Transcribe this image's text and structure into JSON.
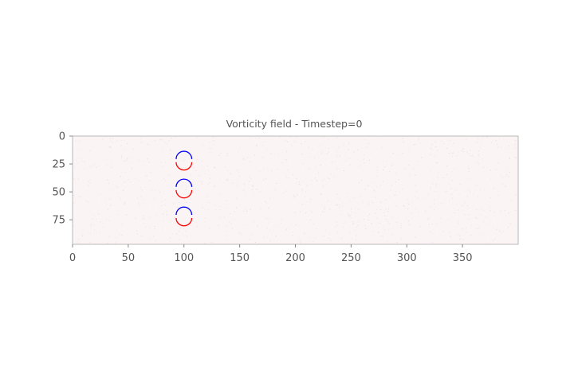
{
  "chart_data": {
    "type": "heatmap",
    "title": "Vorticity field - Timestep=0",
    "xlabel": "",
    "ylabel": "",
    "xlim": [
      0,
      400
    ],
    "ylim": [
      97,
      0
    ],
    "x_ticks": [
      0,
      50,
      100,
      150,
      200,
      250,
      300,
      350
    ],
    "y_ticks": [
      0,
      25,
      50,
      75
    ],
    "grid": false,
    "legend": "none",
    "colormap": "bwr",
    "colors": {
      "positive": "#ff0000",
      "negative": "#0000ff",
      "background_noise": "#f3dede",
      "axes": "#b8b8b8",
      "text": "#555555"
    },
    "vortex_rings": [
      {
        "cx": 100,
        "cy": 22
      },
      {
        "cx": 100,
        "cy": 47
      },
      {
        "cx": 100,
        "cy": 72
      }
    ],
    "ring_radius": 7
  }
}
